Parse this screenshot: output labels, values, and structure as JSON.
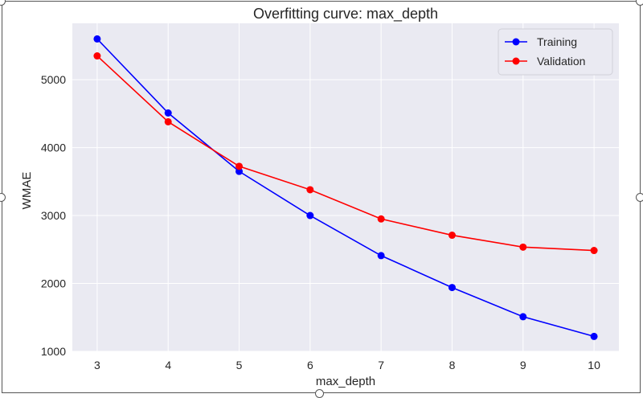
{
  "chart_data": {
    "type": "line",
    "title": "Overfitting curve: max_depth",
    "xlabel": "max_depth",
    "ylabel": "WMAE",
    "x": [
      3,
      4,
      5,
      6,
      7,
      8,
      9,
      10
    ],
    "xticks": [
      "3",
      "4",
      "5",
      "6",
      "7",
      "8",
      "9",
      "10"
    ],
    "yticks": [
      "1000",
      "2000",
      "3000",
      "4000",
      "5000"
    ],
    "ylim": [
      1000,
      5830
    ],
    "xlim": [
      2.65,
      10.35
    ],
    "grid": true,
    "legend_position": "top-right",
    "background": "#eaeaf2",
    "series": [
      {
        "name": "Training",
        "color": "#0000ff",
        "marker": "circle",
        "values": [
          5600,
          4510,
          3650,
          3000,
          2410,
          1940,
          1510,
          1220
        ]
      },
      {
        "name": "Validation",
        "color": "#ff0000",
        "marker": "circle",
        "values": [
          5350,
          4380,
          3725,
          3380,
          2950,
          2710,
          2535,
          2485
        ]
      }
    ]
  }
}
